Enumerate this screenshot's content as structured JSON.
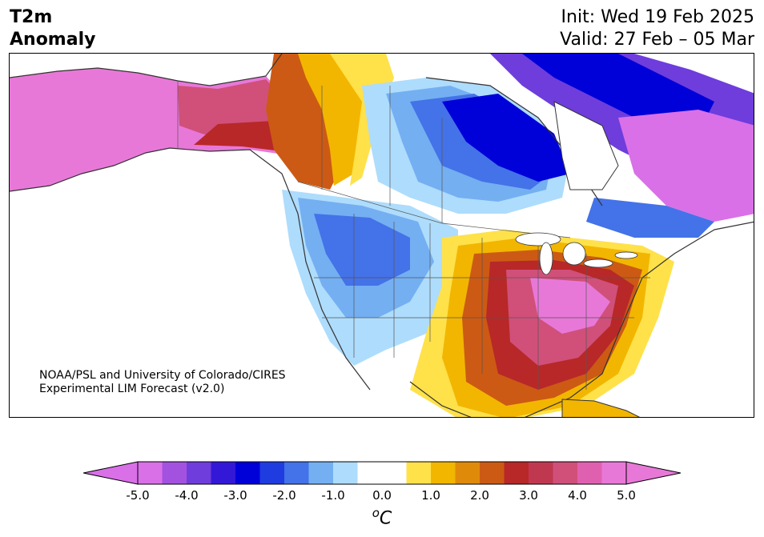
{
  "title": {
    "line1": "T2m",
    "line2": "Anomaly"
  },
  "run_info": {
    "init": "Init: Wed 19 Feb 2025",
    "valid": "Valid: 27 Feb – 05 Mar"
  },
  "credit": {
    "line1": "NOAA/PSL and University of Colorado/CIRES",
    "line2": "Experimental LIM Forecast (v2.0)"
  },
  "colorbar": {
    "unit_base": "C",
    "unit_sup": "o",
    "min": -5.0,
    "max": 5.0,
    "tick_labels": [
      "-5.0",
      "-4.0",
      "-3.0",
      "-2.0",
      "-1.0",
      "0.0",
      "1.0",
      "2.0",
      "3.0",
      "4.0",
      "5.0"
    ],
    "bins": [
      {
        "from": -5.0,
        "to": -4.5,
        "color": "#d970e8"
      },
      {
        "from": -4.5,
        "to": -4.0,
        "color": "#a352e0"
      },
      {
        "from": -4.0,
        "to": -3.5,
        "color": "#6e3ddc"
      },
      {
        "from": -3.5,
        "to": -3.0,
        "color": "#3318d8"
      },
      {
        "from": -3.0,
        "to": -2.5,
        "color": "#0000d8"
      },
      {
        "from": -2.5,
        "to": -2.0,
        "color": "#1f3ce0"
      },
      {
        "from": -2.0,
        "to": -1.5,
        "color": "#4472e8"
      },
      {
        "from": -1.5,
        "to": -1.0,
        "color": "#74aff2"
      },
      {
        "from": -1.0,
        "to": -0.5,
        "color": "#aedcfc"
      },
      {
        "from": -0.5,
        "to": 0.5,
        "color": "#ffffff"
      },
      {
        "from": 0.5,
        "to": 1.0,
        "color": "#ffe14a"
      },
      {
        "from": 1.0,
        "to": 1.5,
        "color": "#f2b600"
      },
      {
        "from": 1.5,
        "to": 2.0,
        "color": "#e08a0a"
      },
      {
        "from": 2.0,
        "to": 2.5,
        "color": "#cc5a14"
      },
      {
        "from": 2.5,
        "to": 3.0,
        "color": "#b82828"
      },
      {
        "from": 3.0,
        "to": 3.5,
        "color": "#c03850"
      },
      {
        "from": 3.5,
        "to": 4.0,
        "color": "#d0507a"
      },
      {
        "from": 4.0,
        "to": 4.5,
        "color": "#e060b0"
      },
      {
        "from": 4.5,
        "to": 5.0,
        "color": "#e878d8"
      }
    ],
    "under_color": "#d970e8",
    "over_color": "#e878d8"
  },
  "map": {
    "region": "North America",
    "anomaly_areas": [
      {
        "region": "Alaska",
        "anomaly": 5.0
      },
      {
        "region": "Yukon",
        "anomaly": 3.0
      },
      {
        "region": "Hudson Bay",
        "anomaly": -3.0
      },
      {
        "region": "Baffin Island",
        "anomaly": -4.5
      },
      {
        "region": "Quebec-Labrador",
        "anomaly": -4.5
      },
      {
        "region": "US West",
        "anomaly": -1.5
      },
      {
        "region": "US Southeast",
        "anomaly": 4.5
      },
      {
        "region": "Gulf Coast",
        "anomaly": 2.5
      }
    ]
  }
}
